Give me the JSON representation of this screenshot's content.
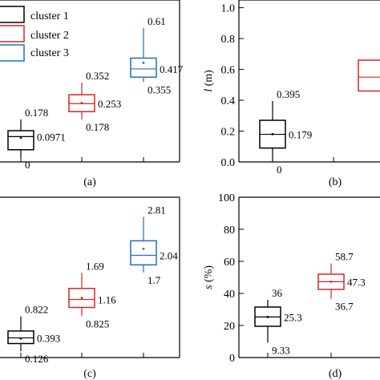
{
  "legend": {
    "items": [
      {
        "label": "cluster 1",
        "color": "#000000"
      },
      {
        "label": "cluster 2",
        "color": "#d62728"
      },
      {
        "label": "cluster 3",
        "color": "#1f6fc5"
      }
    ]
  },
  "chart_data": [
    {
      "panel": "(a)",
      "type": "box",
      "ylabel": "",
      "ylim": null,
      "yticks": [],
      "boxes": [
        {
          "series": "cluster 1",
          "color": "#000000",
          "whisker_low": 0,
          "q1": 0.035,
          "median": 0.0971,
          "q3": 0.125,
          "whisker_high": 0.178,
          "mean": 0.092,
          "labels": {
            "top": "0.178",
            "mid": "0.0971",
            "bottom": "0"
          }
        },
        {
          "series": "cluster 2",
          "color": "#d62728",
          "whisker_low": 0.178,
          "q1": 0.215,
          "median": 0.253,
          "q3": 0.295,
          "whisker_high": 0.352,
          "mean": 0.256,
          "labels": {
            "top": "0.352",
            "mid": "0.253",
            "bottom": "0.178"
          }
        },
        {
          "series": "cluster 3",
          "color": "#1f6fc5",
          "whisker_low": 0.355,
          "q1": 0.378,
          "median": 0.417,
          "q3": 0.468,
          "whisker_high": 0.61,
          "mean": 0.446,
          "labels": {
            "top": "0.61",
            "mid": "0.417",
            "bottom": "0.355"
          }
        }
      ]
    },
    {
      "panel": "(b)",
      "type": "box",
      "ylabel": "l (m)",
      "ylim": [
        0,
        1.05
      ],
      "yticks": [
        "0.0",
        "0.2",
        "0.4",
        "0.6",
        "0.8",
        "1.0"
      ],
      "boxes": [
        {
          "series": "cluster 1",
          "color": "#000000",
          "whisker_low": 0,
          "q1": 0.09,
          "median": 0.179,
          "q3": 0.27,
          "whisker_high": 0.395,
          "mean": 0.18,
          "labels": {
            "top": "0.395",
            "mid": "0.179",
            "bottom": "0"
          }
        },
        {
          "series": "cluster 2",
          "color": "#d62728",
          "whisker_low": null,
          "q1": 0.46,
          "median": 0.55,
          "q3": 0.66,
          "whisker_high": null,
          "mean": null,
          "labels": {
            "top": "",
            "mid": "",
            "bottom": ""
          }
        }
      ]
    },
    {
      "panel": "(c)",
      "type": "box",
      "ylabel": "",
      "ylim": null,
      "yticks": [],
      "boxes": [
        {
          "series": "cluster 1",
          "color": "#000000",
          "whisker_low": 0.126,
          "q1": 0.28,
          "median": 0.393,
          "q3": 0.53,
          "whisker_high": 0.822,
          "mean": 0.38,
          "labels": {
            "top": "0.822",
            "mid": "0.393",
            "bottom": "0.126"
          }
        },
        {
          "series": "cluster 2",
          "color": "#d62728",
          "whisker_low": 0.825,
          "q1": 1.0,
          "median": 1.16,
          "q3": 1.38,
          "whisker_high": 1.69,
          "mean": 1.19,
          "labels": {
            "top": "1.69",
            "mid": "1.16",
            "bottom": "0.825"
          }
        },
        {
          "series": "cluster 3",
          "color": "#1f6fc5",
          "whisker_low": 1.7,
          "q1": 1.85,
          "median": 2.04,
          "q3": 2.33,
          "whisker_high": 2.81,
          "mean": 2.17,
          "labels": {
            "top": "2.81",
            "mid": "2.04",
            "bottom": "1.7"
          }
        }
      ]
    },
    {
      "panel": "(d)",
      "type": "box",
      "ylabel": "s (%)",
      "ylim": [
        0,
        100
      ],
      "yticks": [
        "0",
        "20",
        "40",
        "60",
        "80",
        "100"
      ],
      "boxes": [
        {
          "series": "cluster 1",
          "color": "#000000",
          "whisker_low": 9.33,
          "q1": 19.5,
          "median": 25.3,
          "q3": 31.5,
          "whisker_high": 36,
          "mean": 25.3,
          "labels": {
            "top": "36",
            "mid": "25.3",
            "bottom": "9.33"
          }
        },
        {
          "series": "cluster 2",
          "color": "#d62728",
          "whisker_low": 36.7,
          "q1": 42.5,
          "median": 47.3,
          "q3": 52,
          "whisker_high": 58.7,
          "mean": 47.3,
          "labels": {
            "top": "58.7",
            "mid": "47.3",
            "bottom": "36.7"
          }
        }
      ]
    }
  ]
}
